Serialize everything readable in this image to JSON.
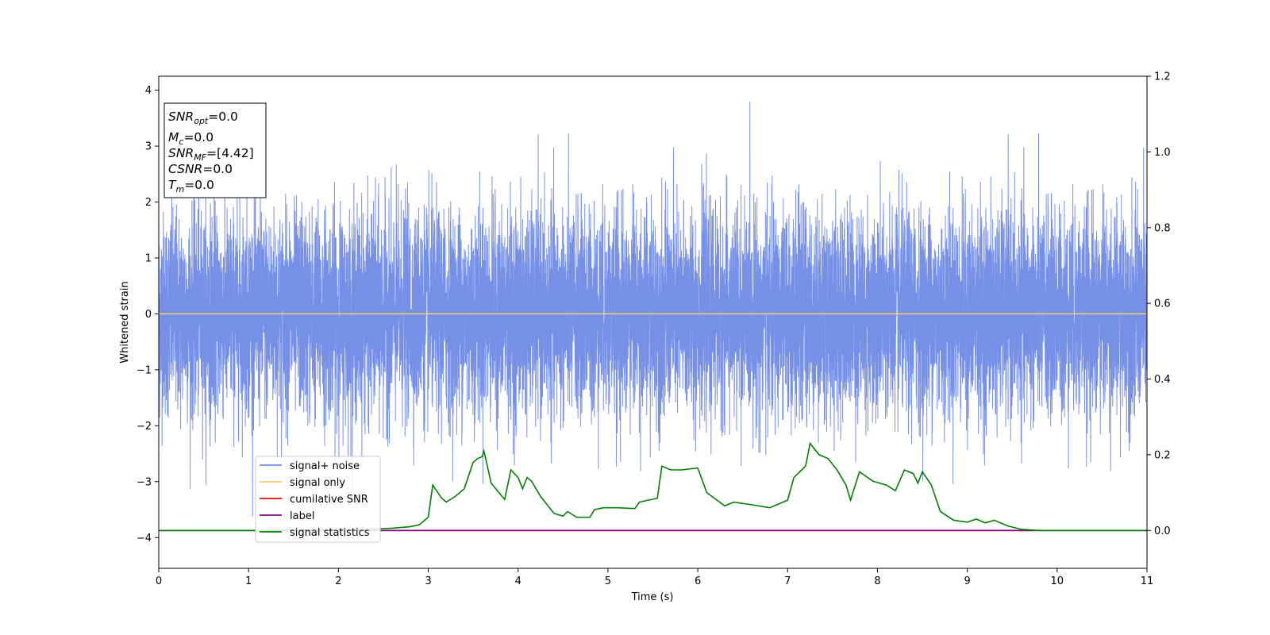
{
  "chart_data": {
    "type": "line",
    "xlabel": "Time (s)",
    "ylabel": "Whitened strain",
    "xlim": [
      0,
      11
    ],
    "ylim_left": [
      -4.55,
      4.25
    ],
    "ylim_right": [
      -0.1,
      1.2
    ],
    "x_ticks": [
      0,
      1,
      2,
      3,
      4,
      5,
      6,
      7,
      8,
      9,
      10,
      11
    ],
    "y_left_ticks": [
      -4,
      -3,
      -2,
      -1,
      0,
      1,
      2,
      3,
      4
    ],
    "y_right_ticks": [
      0.0,
      0.2,
      0.4,
      0.6,
      0.8,
      1.0,
      1.2
    ],
    "grid": false,
    "legend_position": "lower-left",
    "info_box": {
      "snr_opt": {
        "main": "SNR",
        "sub": "opt",
        "value": "=0.0"
      },
      "mc": {
        "main": "M",
        "sub": "c",
        "value": "=0.0"
      },
      "snr_mf": {
        "main": "SNR",
        "sub": "MF",
        "value": "=[4.42]"
      },
      "csnr": {
        "main": "CSNR",
        "value": "=0.0"
      },
      "tm": {
        "main": "T",
        "sub": "m",
        "value": "=0.0"
      }
    },
    "series": [
      {
        "name": "signal+ noise",
        "axis": "left",
        "color": "#6f8ae6",
        "description": "dense whitened noise, amplitude roughly within -4.2 to 3.85",
        "noise_std": 0.9,
        "peak_envelope": [
          3.85,
          -4.15
        ]
      },
      {
        "name": "signal only",
        "axis": "left",
        "color": "#ffcc66",
        "x": [
          0,
          11
        ],
        "y": [
          0,
          0
        ]
      },
      {
        "name": "cumilative SNR",
        "axis": "right",
        "color": "#ff0000",
        "x": [
          0,
          11
        ],
        "y": [
          0,
          0
        ]
      },
      {
        "name": "label",
        "axis": "right",
        "color": "#800080",
        "x": [
          0,
          11
        ],
        "y": [
          0,
          0
        ]
      },
      {
        "name": "signal statistics",
        "axis": "right",
        "color": "#008000",
        "x": [
          0,
          0.5,
          1.0,
          1.5,
          2.0,
          2.3,
          2.6,
          2.8,
          2.9,
          3.0,
          3.05,
          3.15,
          3.2,
          3.3,
          3.4,
          3.5,
          3.55,
          3.6,
          3.62,
          3.7,
          3.85,
          3.92,
          4.0,
          4.05,
          4.1,
          4.15,
          4.25,
          4.4,
          4.5,
          4.55,
          4.65,
          4.8,
          4.85,
          4.95,
          5.1,
          5.3,
          5.35,
          5.45,
          5.55,
          5.6,
          5.7,
          5.82,
          6.0,
          6.1,
          6.3,
          6.4,
          6.6,
          6.8,
          7.0,
          7.07,
          7.2,
          7.25,
          7.35,
          7.45,
          7.55,
          7.65,
          7.7,
          7.8,
          7.95,
          8.1,
          8.2,
          8.3,
          8.4,
          8.45,
          8.5,
          8.6,
          8.7,
          8.85,
          9.0,
          9.1,
          9.2,
          9.3,
          9.45,
          9.6,
          9.8,
          10.0,
          11.0
        ],
        "y": [
          0.0,
          0.0,
          0.0,
          0.001,
          0.001,
          0.003,
          0.006,
          0.01,
          0.015,
          0.035,
          0.12,
          0.085,
          0.075,
          0.09,
          0.11,
          0.18,
          0.19,
          0.195,
          0.21,
          0.125,
          0.082,
          0.16,
          0.14,
          0.11,
          0.14,
          0.13,
          0.09,
          0.045,
          0.038,
          0.05,
          0.035,
          0.035,
          0.055,
          0.06,
          0.06,
          0.058,
          0.075,
          0.08,
          0.085,
          0.17,
          0.16,
          0.16,
          0.165,
          0.1,
          0.065,
          0.075,
          0.068,
          0.06,
          0.08,
          0.14,
          0.17,
          0.23,
          0.2,
          0.19,
          0.16,
          0.12,
          0.08,
          0.155,
          0.13,
          0.12,
          0.105,
          0.16,
          0.15,
          0.125,
          0.155,
          0.12,
          0.05,
          0.027,
          0.022,
          0.03,
          0.02,
          0.027,
          0.012,
          0.003,
          0.0,
          0.0,
          0.0
        ]
      }
    ]
  }
}
